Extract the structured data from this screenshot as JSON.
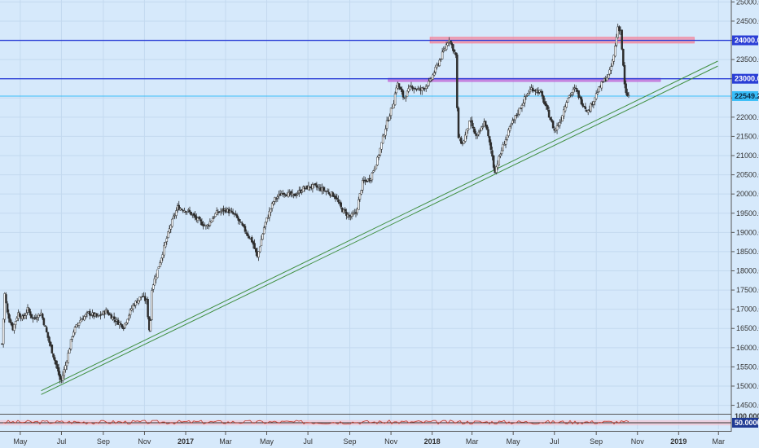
{
  "chart_data": {
    "type": "candlestick",
    "title": "",
    "price_axis": {
      "range": [
        14300,
        25050
      ],
      "tick_labels": [
        "25000.0",
        "24500.0",
        "24000.0",
        "23500.0",
        "23000.0",
        "22500.0",
        "22000.0",
        "21500.0",
        "21000.0",
        "20500.0",
        "20000.0",
        "19500.0",
        "19000.0",
        "18500.0",
        "18000.0",
        "17500.0",
        "17000.0",
        "16500.0",
        "16000.0",
        "15500.0",
        "15000.0",
        "14500.0"
      ],
      "tick_values": [
        25000,
        24500,
        24000,
        23500,
        23000,
        22500,
        22000,
        21500,
        21000,
        20500,
        20000,
        19500,
        19000,
        18500,
        18000,
        17500,
        17000,
        16500,
        16000,
        15500,
        15000,
        14500
      ],
      "side": "right",
      "grid": true
    },
    "time_axis": {
      "tick_labels": [
        "May",
        "Jul",
        "Sep",
        "Nov",
        "2017",
        "Mar",
        "May",
        "Jul",
        "Sep",
        "Nov",
        "2018",
        "Mar",
        "May",
        "Jul",
        "Sep",
        "Nov",
        "2019",
        "Mar"
      ],
      "tick_dates": [
        "2016-05-01",
        "2016-07-01",
        "2016-09-01",
        "2016-11-01",
        "2017-01-01",
        "2017-03-01",
        "2017-05-01",
        "2017-07-01",
        "2017-09-01",
        "2017-11-01",
        "2018-01-01",
        "2018-03-01",
        "2018-05-01",
        "2018-07-01",
        "2018-09-01",
        "2018-11-01",
        "2019-01-01",
        "2019-03-01"
      ],
      "range": [
        "2016-04-01",
        "2019-03-20"
      ]
    },
    "price_series": [
      {
        "date": "2016-04-04",
        "close": 16100
      },
      {
        "date": "2016-04-08",
        "close": 17400
      },
      {
        "date": "2016-04-12",
        "close": 16900
      },
      {
        "date": "2016-04-20",
        "close": 16500
      },
      {
        "date": "2016-04-28",
        "close": 16900
      },
      {
        "date": "2016-05-05",
        "close": 16750
      },
      {
        "date": "2016-05-12",
        "close": 17000
      },
      {
        "date": "2016-05-20",
        "close": 16750
      },
      {
        "date": "2016-06-01",
        "close": 16900
      },
      {
        "date": "2016-06-12",
        "close": 16200
      },
      {
        "date": "2016-06-24",
        "close": 15500
      },
      {
        "date": "2016-06-30",
        "close": 15100
      },
      {
        "date": "2016-07-08",
        "close": 15600
      },
      {
        "date": "2016-07-18",
        "close": 16400
      },
      {
        "date": "2016-07-28",
        "close": 16700
      },
      {
        "date": "2016-08-10",
        "close": 16900
      },
      {
        "date": "2016-08-24",
        "close": 16800
      },
      {
        "date": "2016-09-05",
        "close": 16950
      },
      {
        "date": "2016-09-20",
        "close": 16700
      },
      {
        "date": "2016-10-01",
        "close": 16550
      },
      {
        "date": "2016-10-15",
        "close": 17100
      },
      {
        "date": "2016-10-28",
        "close": 17350
      },
      {
        "date": "2016-11-04",
        "close": 17200
      },
      {
        "date": "2016-11-09",
        "close": 16300
      },
      {
        "date": "2016-11-12",
        "close": 17550
      },
      {
        "date": "2016-11-25",
        "close": 18300
      },
      {
        "date": "2016-12-10",
        "close": 19200
      },
      {
        "date": "2016-12-20",
        "close": 19650
      },
      {
        "date": "2017-01-05",
        "close": 19550
      },
      {
        "date": "2017-01-20",
        "close": 19300
      },
      {
        "date": "2017-02-01",
        "close": 19150
      },
      {
        "date": "2017-02-15",
        "close": 19500
      },
      {
        "date": "2017-03-01",
        "close": 19600
      },
      {
        "date": "2017-03-15",
        "close": 19450
      },
      {
        "date": "2017-03-28",
        "close": 19100
      },
      {
        "date": "2017-04-10",
        "close": 18750
      },
      {
        "date": "2017-04-17",
        "close": 18350
      },
      {
        "date": "2017-04-28",
        "close": 19200
      },
      {
        "date": "2017-05-12",
        "close": 19850
      },
      {
        "date": "2017-05-25",
        "close": 20050
      },
      {
        "date": "2017-06-10",
        "close": 19950
      },
      {
        "date": "2017-06-25",
        "close": 20150
      },
      {
        "date": "2017-07-10",
        "close": 20200
      },
      {
        "date": "2017-07-25",
        "close": 20100
      },
      {
        "date": "2017-08-10",
        "close": 19950
      },
      {
        "date": "2017-08-20",
        "close": 19600
      },
      {
        "date": "2017-09-01",
        "close": 19400
      },
      {
        "date": "2017-09-10",
        "close": 19500
      },
      {
        "date": "2017-09-20",
        "close": 20300
      },
      {
        "date": "2017-10-01",
        "close": 20400
      },
      {
        "date": "2017-10-12",
        "close": 20900
      },
      {
        "date": "2017-10-25",
        "close": 21800
      },
      {
        "date": "2017-11-05",
        "close": 22400
      },
      {
        "date": "2017-11-10",
        "close": 22900
      },
      {
        "date": "2017-11-20",
        "close": 22500
      },
      {
        "date": "2017-12-01",
        "close": 22800
      },
      {
        "date": "2017-12-15",
        "close": 22700
      },
      {
        "date": "2017-12-28",
        "close": 22900
      },
      {
        "date": "2018-01-10",
        "close": 23400
      },
      {
        "date": "2018-01-20",
        "close": 23800
      },
      {
        "date": "2018-01-26",
        "close": 24050
      },
      {
        "date": "2018-02-05",
        "close": 23600
      },
      {
        "date": "2018-02-08",
        "close": 21500
      },
      {
        "date": "2018-02-15",
        "close": 21300
      },
      {
        "date": "2018-02-26",
        "close": 21900
      },
      {
        "date": "2018-03-08",
        "close": 21450
      },
      {
        "date": "2018-03-20",
        "close": 21900
      },
      {
        "date": "2018-04-01",
        "close": 20900
      },
      {
        "date": "2018-04-03",
        "close": 20550
      },
      {
        "date": "2018-04-15",
        "close": 21200
      },
      {
        "date": "2018-04-28",
        "close": 21800
      },
      {
        "date": "2018-05-10",
        "close": 22200
      },
      {
        "date": "2018-05-20",
        "close": 22550
      },
      {
        "date": "2018-05-28",
        "close": 22750
      },
      {
        "date": "2018-06-10",
        "close": 22650
      },
      {
        "date": "2018-06-22",
        "close": 22100
      },
      {
        "date": "2018-07-01",
        "close": 21650
      },
      {
        "date": "2018-07-10",
        "close": 21900
      },
      {
        "date": "2018-07-20",
        "close": 22500
      },
      {
        "date": "2018-08-01",
        "close": 22750
      },
      {
        "date": "2018-08-10",
        "close": 22400
      },
      {
        "date": "2018-08-20",
        "close": 22150
      },
      {
        "date": "2018-09-01",
        "close": 22600
      },
      {
        "date": "2018-09-10",
        "close": 22900
      },
      {
        "date": "2018-09-20",
        "close": 23100
      },
      {
        "date": "2018-09-27",
        "close": 23600
      },
      {
        "date": "2018-10-03",
        "close": 24350
      },
      {
        "date": "2018-10-07",
        "close": 24250
      },
      {
        "date": "2018-10-10",
        "close": 23550
      },
      {
        "date": "2018-10-14",
        "close": 22600
      },
      {
        "date": "2018-10-20",
        "close": 22549.2
      }
    ],
    "horizontal_lines": [
      {
        "value": 24000,
        "label": "24000.0",
        "color": "#2b3fd6"
      },
      {
        "value": 23000,
        "label": "23000.0",
        "color": "#2b3fd6"
      },
      {
        "value": 22549.2,
        "label": "22549.2",
        "color": "#38bdf8",
        "type": "last_price"
      }
    ],
    "zones": [
      {
        "from_date": "2017-12-29",
        "to_date": "2019-01-24",
        "low": 23930,
        "high": 24080,
        "color": "#f28aa0"
      },
      {
        "from_date": "2017-10-28",
        "to_date": "2018-12-05",
        "low": 22930,
        "high": 23010,
        "color": "#c26bd8"
      }
    ],
    "trendlines": [
      {
        "from_date": "2016-06-01",
        "from_value": 14880,
        "to_date": "2019-02-28",
        "to_value": 23460,
        "color": "#3f8f3f"
      },
      {
        "from_date": "2016-06-01",
        "from_value": 14780,
        "to_date": "2019-02-28",
        "to_value": 23330,
        "color": "#3f8f3f"
      }
    ],
    "indicator": {
      "range": [
        0,
        100
      ],
      "tick_labels": [
        "100.0000",
        "50.0000"
      ],
      "tick_values": [
        100,
        50
      ],
      "upper_band": 70,
      "lower_band": 30,
      "line_color": "#c0392b",
      "band_color": "#f3c3d0"
    }
  },
  "colors": {
    "background": "#d6e9fb",
    "grid": "#c3d9ef",
    "candle_up": "#2d2d2d",
    "candle_down": "#2d2d2d"
  }
}
